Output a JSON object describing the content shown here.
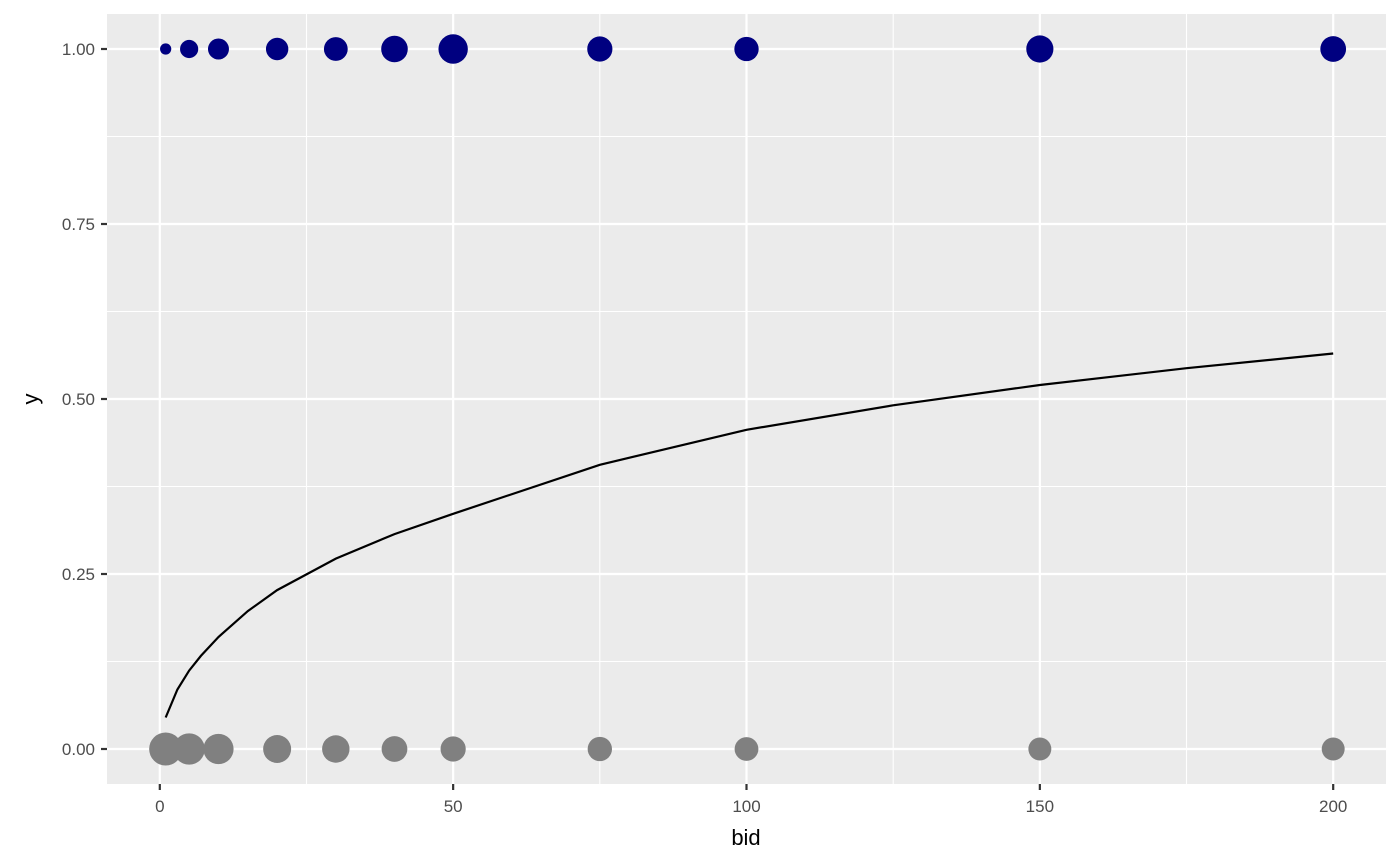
{
  "chart_data": {
    "type": "scatter",
    "xlabel": "bid",
    "ylabel": "y",
    "xlim": [
      -9,
      209
    ],
    "ylim": [
      -0.05,
      1.05
    ],
    "x_ticks": [
      0,
      50,
      100,
      150,
      200
    ],
    "x_tick_labels": [
      "0",
      "50",
      "100",
      "150",
      "200"
    ],
    "y_ticks": [
      0,
      0.25,
      0.5,
      0.75,
      1.0
    ],
    "y_tick_labels": [
      "0.00",
      "0.25",
      "0.50",
      "0.75",
      "1.00"
    ],
    "grid": true,
    "colors": {
      "panel_background": "#ebebeb",
      "grid_line": "#ffffff",
      "yes_points": "#000080",
      "no_points": "#808080",
      "curve": "#000000"
    },
    "series": [
      {
        "y_value": 1,
        "color": "#000080",
        "points": [
          {
            "x": 1,
            "relative_size": 0.4
          },
          {
            "x": 5,
            "relative_size": 0.65
          },
          {
            "x": 10,
            "relative_size": 0.75
          },
          {
            "x": 20,
            "relative_size": 0.8
          },
          {
            "x": 30,
            "relative_size": 0.85
          },
          {
            "x": 40,
            "relative_size": 0.95
          },
          {
            "x": 50,
            "relative_size": 1.05
          },
          {
            "x": 75,
            "relative_size": 0.9
          },
          {
            "x": 100,
            "relative_size": 0.87
          },
          {
            "x": 150,
            "relative_size": 0.97
          },
          {
            "x": 200,
            "relative_size": 0.92
          }
        ]
      },
      {
        "y_value": 0,
        "color": "#808080",
        "points": [
          {
            "x": 1,
            "relative_size": 1.18
          },
          {
            "x": 5,
            "relative_size": 1.12
          },
          {
            "x": 10,
            "relative_size": 1.08
          },
          {
            "x": 20,
            "relative_size": 1.0
          },
          {
            "x": 30,
            "relative_size": 0.98
          },
          {
            "x": 40,
            "relative_size": 0.92
          },
          {
            "x": 50,
            "relative_size": 0.9
          },
          {
            "x": 75,
            "relative_size": 0.87
          },
          {
            "x": 100,
            "relative_size": 0.85
          },
          {
            "x": 150,
            "relative_size": 0.82
          },
          {
            "x": 200,
            "relative_size": 0.82
          }
        ]
      }
    ],
    "curve": {
      "x": [
        1,
        3,
        5,
        7,
        10,
        15,
        20,
        30,
        40,
        50,
        75,
        100,
        125,
        150,
        175,
        200
      ],
      "y": [
        0.045,
        0.085,
        0.112,
        0.133,
        0.16,
        0.197,
        0.227,
        0.272,
        0.307,
        0.336,
        0.406,
        0.456,
        0.491,
        0.52,
        0.544,
        0.565
      ]
    }
  }
}
